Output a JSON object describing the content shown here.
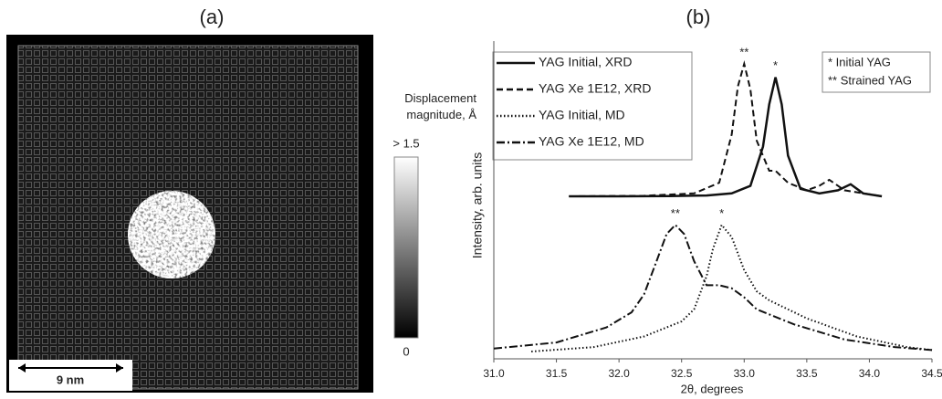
{
  "image_panel": {
    "label": "(a)",
    "colorbar_title": "Displacement magnitude, Å",
    "colorbar_max": "> 1.5",
    "colorbar_min": "0",
    "scale_bar": "9 nm"
  },
  "chart_data": {
    "type": "line",
    "label": "(b)",
    "x_label": "2θ, degrees",
    "y_label": "Intensity, arb. units",
    "xlim": [
      31.0,
      34.5
    ],
    "xticks": [
      {
        "value": 31.0,
        "label": "31.0"
      },
      {
        "value": 31.5,
        "label": "31.5"
      },
      {
        "value": 32.0,
        "label": "32.0"
      },
      {
        "value": 32.5,
        "label": "32.5"
      },
      {
        "value": 33.0,
        "label": "33.0"
      },
      {
        "value": 33.5,
        "label": "33.5"
      },
      {
        "value": 34.0,
        "label": "34.0"
      },
      {
        "value": 34.5,
        "label": "34.5"
      }
    ],
    "ylim": [
      0,
      1
    ],
    "series": [
      {
        "name": "YAG Initial, XRD",
        "color": "#111111",
        "dash": "solid",
        "peak_label": "*",
        "x": [
          31.6,
          32.0,
          32.4,
          32.7,
          32.9,
          33.05,
          33.15,
          33.2,
          33.25,
          33.3,
          33.35,
          33.45,
          33.6,
          33.75,
          33.85,
          33.95,
          34.1
        ],
        "values": [
          0.515,
          0.515,
          0.516,
          0.518,
          0.525,
          0.55,
          0.68,
          0.82,
          0.91,
          0.82,
          0.65,
          0.54,
          0.525,
          0.535,
          0.555,
          0.525,
          0.515
        ]
      },
      {
        "name": "YAG Xe 1E12, XRD",
        "color": "#111111",
        "dash": "dashed",
        "peak_label": "**",
        "x": [
          31.6,
          32.2,
          32.6,
          32.8,
          32.9,
          32.95,
          33.0,
          33.05,
          33.1,
          33.2,
          33.25,
          33.35,
          33.5,
          33.6,
          33.68,
          33.8,
          34.1
        ],
        "values": [
          0.515,
          0.517,
          0.525,
          0.56,
          0.72,
          0.88,
          0.955,
          0.87,
          0.7,
          0.6,
          0.6,
          0.56,
          0.535,
          0.55,
          0.57,
          0.535,
          0.515
        ]
      },
      {
        "name": "YAG Initial, MD",
        "color": "#111111",
        "dash": "dotted",
        "peak_label": "*",
        "x": [
          31.3,
          31.8,
          32.2,
          32.5,
          32.6,
          32.7,
          32.75,
          32.82,
          32.9,
          33.0,
          33.1,
          33.2,
          33.5,
          33.9,
          34.3,
          34.5
        ],
        "values": [
          0.0,
          0.015,
          0.05,
          0.1,
          0.14,
          0.25,
          0.34,
          0.42,
          0.38,
          0.27,
          0.2,
          0.17,
          0.11,
          0.05,
          0.015,
          0.005
        ]
      },
      {
        "name": "YAG Xe 1E12, MD",
        "color": "#111111",
        "dash": "dashdot",
        "peak_label": "**",
        "x": [
          31.0,
          31.5,
          31.9,
          32.1,
          32.2,
          32.3,
          32.38,
          32.45,
          32.52,
          32.6,
          32.7,
          32.8,
          32.9,
          33.0,
          33.1,
          33.4,
          33.8,
          34.2,
          34.5
        ],
        "values": [
          0.01,
          0.03,
          0.08,
          0.13,
          0.19,
          0.3,
          0.39,
          0.42,
          0.39,
          0.3,
          0.22,
          0.22,
          0.21,
          0.18,
          0.14,
          0.09,
          0.04,
          0.015,
          0.005
        ]
      }
    ],
    "markers_legend": [
      "* Initial YAG",
      "** Strained YAG"
    ]
  }
}
